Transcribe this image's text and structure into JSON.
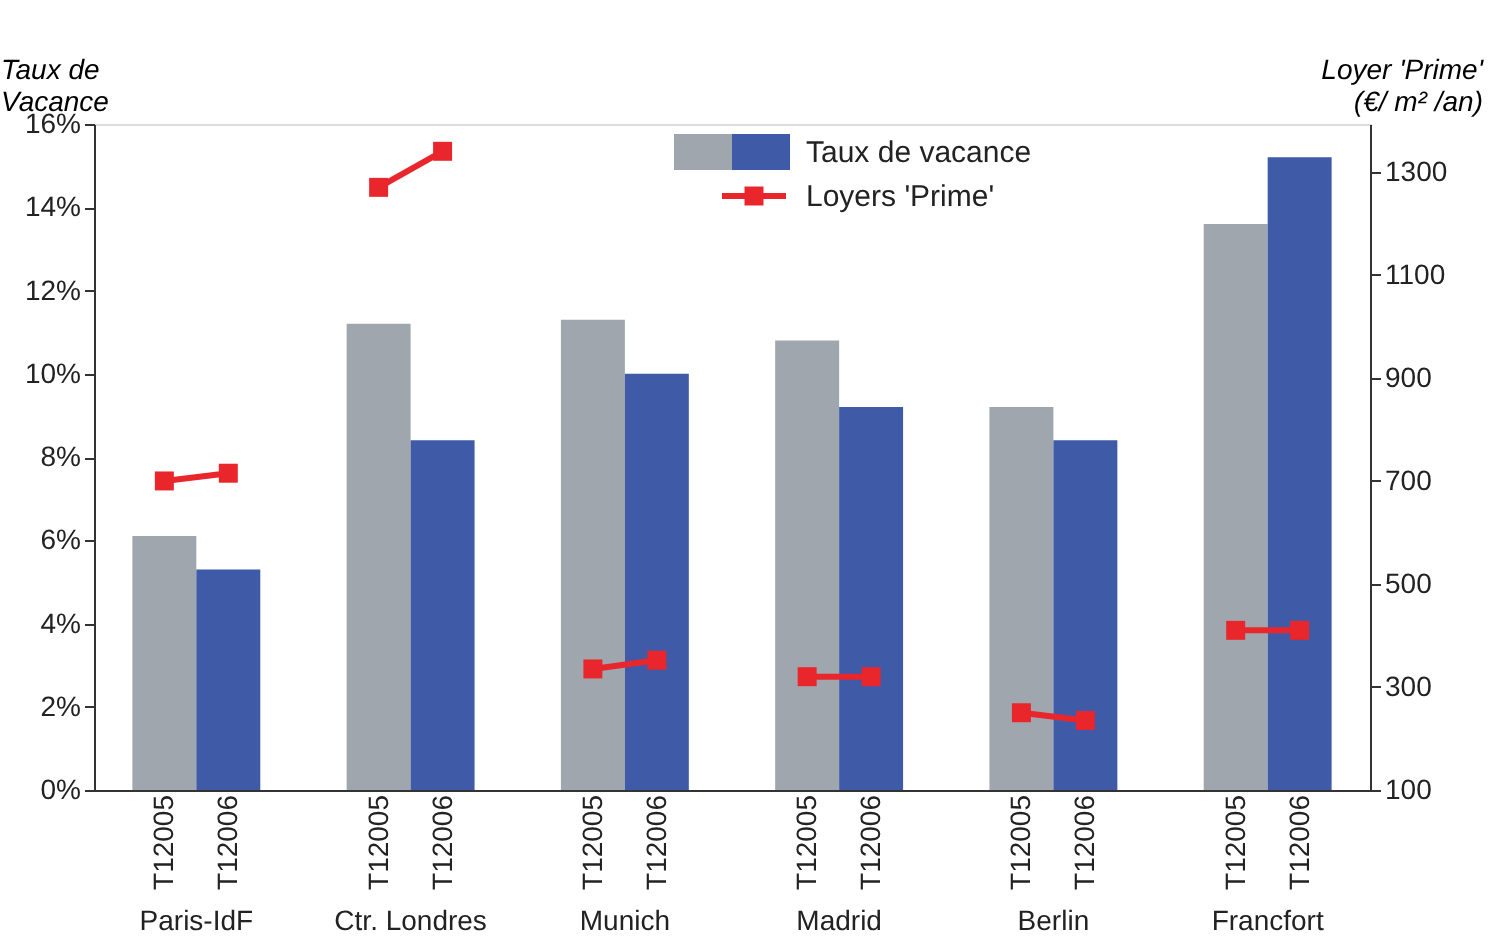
{
  "chart_data": {
    "type": "bar",
    "ylabel": "Taux de\nVacance",
    "y2label": "Loyer 'Prime'\n(€/ m² /an)",
    "categories": [
      "T12005",
      "T12006",
      "T12005",
      "T12006",
      "T12005",
      "T12006",
      "T12005",
      "T12006",
      "T12005",
      "T12006",
      "T12005",
      "T12006"
    ],
    "annotations": [
      "Paris-IdF",
      "Ctr. Londres",
      "Munich",
      "Madrid",
      "Berlin",
      "Francfort"
    ],
    "series": [
      {
        "name": "Taux de vacance",
        "colors": [
          "#a0a6ad",
          "#3f5ba8",
          "#a0a6ad",
          "#3f5ba8",
          "#a0a6ad",
          "#3f5ba8",
          "#a0a6ad",
          "#3f5ba8",
          "#a0a6ad",
          "#3f5ba8",
          "#a0a6ad",
          "#3f5ba8"
        ],
        "values": [
          6.1,
          5.3,
          11.2,
          8.4,
          11.3,
          10.0,
          10.8,
          9.2,
          9.2,
          8.4,
          13.6,
          15.2
        ]
      },
      {
        "name": "Loyers 'Prime'",
        "type": "line",
        "axis": "y2",
        "color": "#e8262b",
        "values": [
          700,
          715,
          null,
          null,
          null,
          null,
          null,
          null,
          null,
          null,
          null,
          null
        ]
      },
      {
        "type": "line",
        "axis": "y2",
        "color": "#e8262b",
        "values": [
          null,
          null,
          1270,
          1340,
          null,
          null,
          null,
          null,
          null,
          null,
          null,
          null
        ]
      },
      {
        "type": "line",
        "axis": "y2",
        "color": "#e8262b",
        "values": [
          null,
          null,
          null,
          null,
          335,
          352,
          null,
          null,
          null,
          null,
          null,
          null
        ]
      },
      {
        "type": "line",
        "axis": "y2",
        "color": "#e8262b",
        "values": [
          null,
          null,
          null,
          null,
          null,
          null,
          320,
          320,
          null,
          null,
          null,
          null
        ]
      },
      {
        "type": "line",
        "axis": "y2",
        "color": "#e8262b",
        "values": [
          null,
          null,
          null,
          null,
          null,
          null,
          null,
          null,
          250,
          235,
          null,
          null
        ]
      },
      {
        "type": "line",
        "axis": "y2",
        "color": "#e8262b",
        "values": [
          null,
          null,
          null,
          null,
          null,
          null,
          null,
          null,
          null,
          null,
          410,
          410
        ]
      }
    ],
    "ylim": [
      0,
      16
    ],
    "yticks": [
      {
        "value": 0,
        "label": "0%"
      },
      {
        "value": 2,
        "label": "2%"
      },
      {
        "value": 4,
        "label": "4%"
      },
      {
        "value": 6,
        "label": "6%"
      },
      {
        "value": 8,
        "label": "8%"
      },
      {
        "value": 10,
        "label": "10%"
      },
      {
        "value": 12,
        "label": "12%"
      },
      {
        "value": 14,
        "label": "14%"
      },
      {
        "value": 16,
        "label": "16%"
      }
    ],
    "y2lim": [
      100,
      1393
    ],
    "y2ticks": [
      100,
      300,
      500,
      700,
      900,
      1100,
      1300
    ],
    "marker": "square",
    "line_style": "solid",
    "grid": false,
    "legend": "top"
  }
}
